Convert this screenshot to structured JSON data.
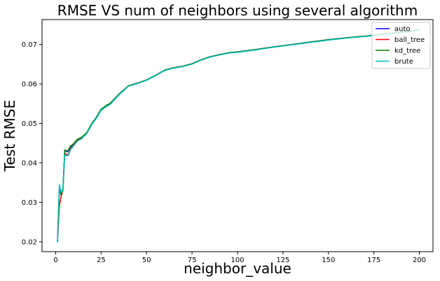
{
  "chart_data": {
    "type": "line",
    "title": "RMSE VS num of neighbors using several algorithm",
    "xlabel": "neighbor_value",
    "ylabel": "Test RMSE",
    "xlim": [
      -7.5,
      207.5
    ],
    "ylim": [
      0.0175,
      0.0763
    ],
    "xticks": [
      0,
      25,
      50,
      75,
      100,
      125,
      150,
      175,
      200
    ],
    "xtick_labels": [
      "0",
      "25",
      "50",
      "75",
      "100",
      "125",
      "150",
      "175",
      "200"
    ],
    "yticks": [
      0.02,
      0.03,
      0.04,
      0.05,
      0.06,
      0.07
    ],
    "ytick_labels": [
      "0.02",
      "0.03",
      "0.04",
      "0.05",
      "0.06",
      "0.07"
    ],
    "grid": false,
    "legend_position": "top-right",
    "x": [
      1,
      2,
      3,
      4,
      5,
      6,
      7,
      8,
      9,
      10,
      11,
      12,
      13,
      14,
      15,
      17,
      20,
      22,
      25,
      28,
      30,
      35,
      40,
      45,
      50,
      55,
      60,
      65,
      70,
      75,
      80,
      85,
      90,
      95,
      100,
      110,
      120,
      130,
      140,
      150,
      160,
      170,
      180,
      190,
      200
    ],
    "series": [
      {
        "name": "auto",
        "color": "#0000ff",
        "values": [
          0.0202,
          0.0335,
          0.0318,
          0.0332,
          0.0432,
          0.0428,
          0.043,
          0.044,
          0.0443,
          0.0448,
          0.0453,
          0.0458,
          0.046,
          0.0462,
          0.0467,
          0.0475,
          0.05,
          0.0512,
          0.0535,
          0.0545,
          0.055,
          0.0575,
          0.0595,
          0.0602,
          0.061,
          0.0622,
          0.0635,
          0.0641,
          0.0645,
          0.0651,
          0.0661,
          0.0669,
          0.0674,
          0.0679,
          0.0681,
          0.0687,
          0.0694,
          0.07,
          0.0706,
          0.0712,
          0.0717,
          0.0721,
          0.0726,
          0.0731,
          0.0737
        ]
      },
      {
        "name": "ball_tree",
        "color": "#ff0000",
        "values": [
          0.02,
          0.029,
          0.0315,
          0.033,
          0.0425,
          0.042,
          0.0422,
          0.0435,
          0.044,
          0.0446,
          0.0452,
          0.0457,
          0.046,
          0.0463,
          0.0467,
          0.0475,
          0.05,
          0.0512,
          0.0535,
          0.0545,
          0.055,
          0.0575,
          0.0595,
          0.0602,
          0.061,
          0.0622,
          0.0635,
          0.0641,
          0.0645,
          0.0651,
          0.0661,
          0.0669,
          0.0674,
          0.0679,
          0.0681,
          0.0687,
          0.0694,
          0.07,
          0.0706,
          0.0712,
          0.0717,
          0.0721,
          0.0726,
          0.0731,
          0.0737
        ]
      },
      {
        "name": "kd_tree",
        "color": "#008000",
        "values": [
          0.0202,
          0.033,
          0.032,
          0.0335,
          0.0433,
          0.043,
          0.0432,
          0.0442,
          0.0445,
          0.045,
          0.0455,
          0.046,
          0.0462,
          0.0464,
          0.0468,
          0.0476,
          0.0501,
          0.0513,
          0.0536,
          0.0546,
          0.0551,
          0.0575,
          0.0595,
          0.0602,
          0.061,
          0.0622,
          0.0635,
          0.0641,
          0.0645,
          0.0651,
          0.0661,
          0.0669,
          0.0674,
          0.0679,
          0.0681,
          0.0687,
          0.0694,
          0.07,
          0.0706,
          0.0712,
          0.0717,
          0.0721,
          0.0726,
          0.0731,
          0.0737
        ]
      },
      {
        "name": "brute",
        "color": "#00bfbf",
        "values": [
          0.0198,
          0.0345,
          0.0325,
          0.0328,
          0.042,
          0.0418,
          0.0419,
          0.0432,
          0.0438,
          0.0444,
          0.045,
          0.0455,
          0.0458,
          0.046,
          0.0465,
          0.0473,
          0.0498,
          0.051,
          0.0533,
          0.0543,
          0.0548,
          0.0573,
          0.0594,
          0.0601,
          0.0609,
          0.0621,
          0.0634,
          0.064,
          0.0644,
          0.065,
          0.066,
          0.0668,
          0.0673,
          0.0678,
          0.068,
          0.0686,
          0.0693,
          0.0699,
          0.0705,
          0.0711,
          0.0716,
          0.072,
          0.0725,
          0.073,
          0.0736
        ]
      }
    ]
  }
}
